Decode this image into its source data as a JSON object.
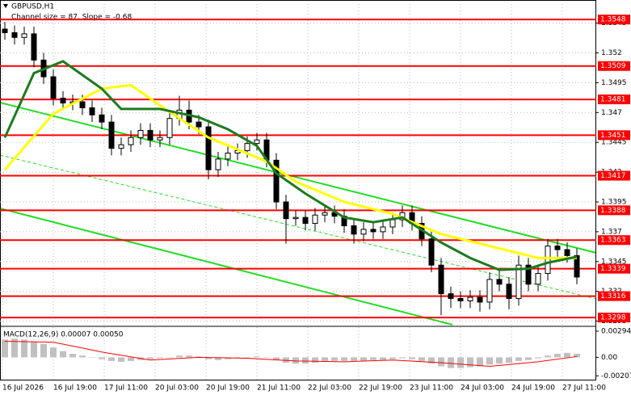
{
  "chart_data": {
    "type": "candlestick",
    "title": "GBPUSD,H1",
    "annotation": "Channel size = 87, Slope = -0.68",
    "candles": {
      "open": [
        1.354,
        1.3537,
        1.3533,
        1.3536,
        1.3514,
        1.35,
        1.3482,
        1.3478,
        1.3479,
        1.3474,
        1.3468,
        1.3462,
        1.344,
        1.3443,
        1.3449,
        1.3455,
        1.3447,
        1.3449,
        1.3465,
        1.3472,
        1.3462,
        1.3458,
        1.3422,
        1.3431,
        1.3436,
        1.3438,
        1.3444,
        1.3447,
        1.343,
        1.3395,
        1.3381,
        1.3382,
        1.3377,
        1.3384,
        1.3386,
        1.3383,
        1.3375,
        1.3368,
        1.3372,
        1.337,
        1.3374,
        1.338,
        1.3386,
        1.3377,
        1.3364,
        1.3342,
        1.3318,
        1.3314,
        1.3312,
        1.3315,
        1.3311,
        1.333,
        1.3326,
        1.3314,
        1.3342,
        1.3326,
        1.3335,
        1.3358,
        1.3355,
        1.335
      ],
      "high": [
        1.3546,
        1.3543,
        1.3542,
        1.3542,
        1.352,
        1.3506,
        1.3488,
        1.3485,
        1.3485,
        1.348,
        1.3474,
        1.3468,
        1.3449,
        1.3455,
        1.3461,
        1.3461,
        1.3455,
        1.3471,
        1.3484,
        1.348,
        1.3468,
        1.3464,
        1.3437,
        1.3442,
        1.3444,
        1.345,
        1.3453,
        1.3453,
        1.3436,
        1.3401,
        1.3388,
        1.3388,
        1.339,
        1.3392,
        1.3392,
        1.3389,
        1.3381,
        1.3378,
        1.3378,
        1.338,
        1.3386,
        1.3392,
        1.3392,
        1.3383,
        1.337,
        1.3348,
        1.3324,
        1.332,
        1.3321,
        1.3321,
        1.3336,
        1.3338,
        1.3332,
        1.335,
        1.3348,
        1.3341,
        1.3364,
        1.3364,
        1.3361,
        1.3356
      ],
      "low": [
        1.3531,
        1.3527,
        1.3527,
        1.3508,
        1.3494,
        1.3476,
        1.3472,
        1.3472,
        1.3468,
        1.3462,
        1.3456,
        1.3434,
        1.3434,
        1.3437,
        1.3443,
        1.3441,
        1.3441,
        1.3443,
        1.3459,
        1.3456,
        1.3452,
        1.3414,
        1.3416,
        1.3425,
        1.343,
        1.3432,
        1.3438,
        1.3424,
        1.3389,
        1.336,
        1.3375,
        1.3371,
        1.3371,
        1.3378,
        1.3377,
        1.3369,
        1.336,
        1.3362,
        1.3364,
        1.3364,
        1.3368,
        1.3374,
        1.3371,
        1.3358,
        1.3336,
        1.33,
        1.3306,
        1.3306,
        1.3306,
        1.3303,
        1.3305,
        1.332,
        1.3305,
        1.3308,
        1.332,
        1.332,
        1.3329,
        1.3349,
        1.3344,
        1.3326
      ],
      "close": [
        1.3537,
        1.3533,
        1.3536,
        1.3514,
        1.35,
        1.3482,
        1.3478,
        1.3479,
        1.3474,
        1.3468,
        1.3462,
        1.344,
        1.3443,
        1.3449,
        1.3455,
        1.3447,
        1.3449,
        1.3465,
        1.3472,
        1.3462,
        1.3458,
        1.3422,
        1.3431,
        1.3436,
        1.3438,
        1.3444,
        1.3447,
        1.343,
        1.3395,
        1.3381,
        1.3382,
        1.3377,
        1.3384,
        1.3386,
        1.3383,
        1.3375,
        1.3368,
        1.3372,
        1.337,
        1.3374,
        1.338,
        1.3386,
        1.3377,
        1.3364,
        1.3342,
        1.3318,
        1.3314,
        1.3312,
        1.3315,
        1.3311,
        1.333,
        1.3326,
        1.3314,
        1.3342,
        1.3326,
        1.3335,
        1.3358,
        1.3355,
        1.335,
        1.3332
      ]
    },
    "series": [
      {
        "color": "#ffff00",
        "x": [
          0,
          5,
          10,
          13,
          16,
          21,
          27,
          30,
          35,
          40,
          45,
          50,
          55,
          59
        ],
        "values": [
          1.3422,
          1.3469,
          1.349,
          1.3493,
          1.3476,
          1.3449,
          1.3429,
          1.3412,
          1.3395,
          1.3385,
          1.3368,
          1.3358,
          1.3348,
          1.3348
        ]
      },
      {
        "color": "#1e7a1e",
        "x": [
          0,
          3,
          6,
          10,
          12,
          16,
          20,
          23,
          26,
          28,
          31,
          35,
          38,
          41,
          45,
          48,
          51,
          54,
          56,
          59
        ],
        "values": [
          1.3449,
          1.3503,
          1.3513,
          1.349,
          1.3473,
          1.3473,
          1.3466,
          1.3456,
          1.3442,
          1.3419,
          1.3402,
          1.3382,
          1.3378,
          1.3382,
          1.3361,
          1.3348,
          1.3338,
          1.3339,
          1.3344,
          1.3349
        ]
      }
    ],
    "levels": [
      1.3548,
      1.3509,
      1.3481,
      1.3451,
      1.3417,
      1.3388,
      1.3363,
      1.3339,
      1.3316,
      1.3298
    ],
    "level_color": "#ff0000",
    "ylim": [
      1.3292,
      1.3561
    ],
    "yticks": [
      1.3545,
      1.352,
      1.3495,
      1.347,
      1.3445,
      1.342,
      1.3395,
      1.337,
      1.3345,
      1.332,
      1.3295
    ],
    "grid": true,
    "x_labels": [
      "16 Jul 2026",
      "16 Jul 19:00",
      "17 Jul 11:00",
      "20 Jul 03:00",
      "20 Jul 19:00",
      "21 Jul 11:00",
      "22 Jul 03:00",
      "22 Jul 19:00",
      "23 Jul 11:00",
      "24 Jul 03:00",
      "24 Jul 19:00",
      "27 Jul 11:00"
    ],
    "macd": {
      "label": "MACD(12,26,9) 0.00007 0.00050",
      "histogram": [
        0.002,
        0.0021,
        0.002,
        0.0018,
        0.0015,
        0.0011,
        0.0007,
        0.0004,
        0.0002,
        0,
        -0.0002,
        -0.0004,
        -0.0005,
        -0.0004,
        -0.0003,
        -0.0002,
        -0.0001,
        0,
        0.0002,
        0.0002,
        0.0001,
        -0.0002,
        -0.0003,
        -0.0002,
        -0.0001,
        0,
        0.0001,
        0,
        -0.0003,
        -0.0006,
        -0.0007,
        -0.0007,
        -0.0006,
        -0.0005,
        -0.0004,
        -0.0004,
        -0.0004,
        -0.0004,
        -0.0003,
        -0.0003,
        -0.0002,
        -0.0001,
        -0.0002,
        -0.0004,
        -0.0007,
        -0.001,
        -0.0012,
        -0.0012,
        -0.0011,
        -0.001,
        -0.0008,
        -0.0007,
        -0.0006,
        -0.0004,
        -0.0003,
        -0.0001,
        0.0002,
        0.0004,
        0.0005,
        0.0004
      ],
      "signal": {
        "color": "#ff0000",
        "x": [
          0,
          5,
          10,
          15,
          20,
          25,
          30,
          35,
          40,
          45,
          50,
          55,
          59
        ],
        "values": [
          0.0018,
          0.0017,
          0.0006,
          -0.0003,
          0,
          -0.0001,
          -0.0004,
          -0.0005,
          -0.0003,
          -0.0006,
          -0.001,
          -0.0005,
          0.0001
        ]
      },
      "ylim": [
        -0.0025,
        0.0033
      ],
      "yticks": [
        0.00294,
        {
          "value": 0,
          "label": "0.00"
        },
        -0.00207
      ]
    }
  }
}
